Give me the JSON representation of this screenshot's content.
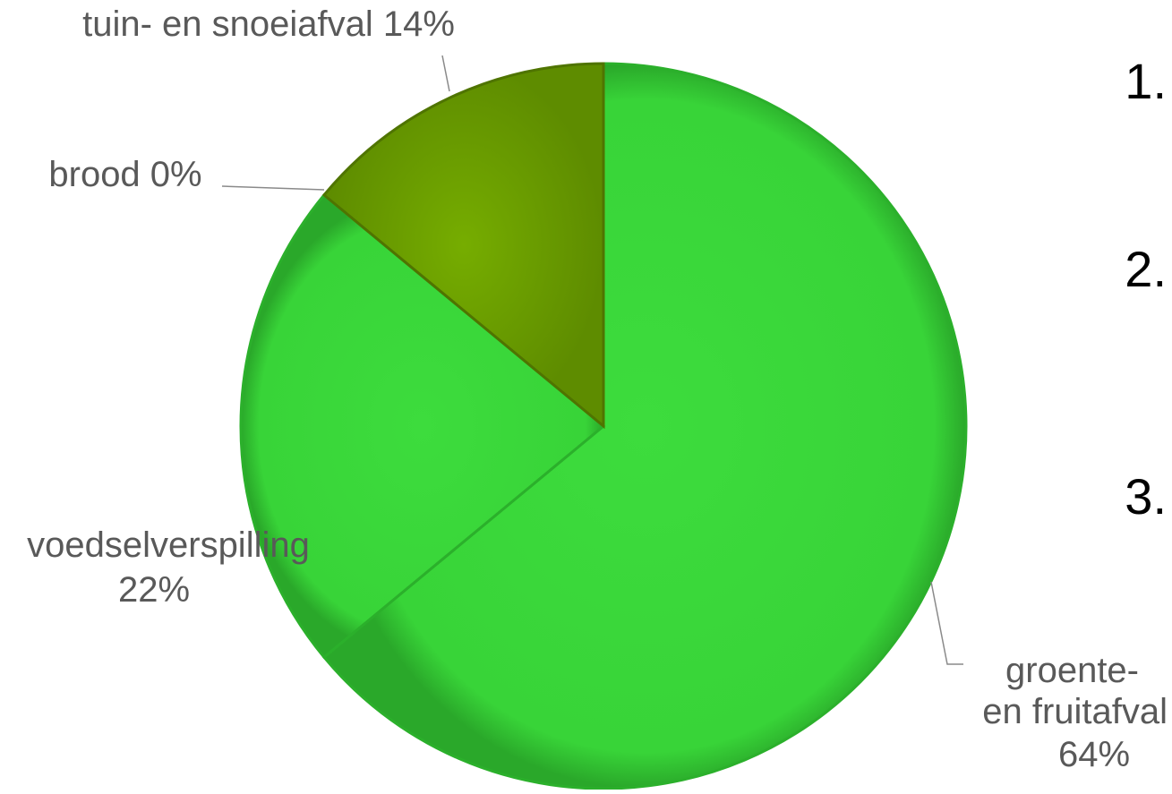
{
  "chart_data": {
    "type": "pie",
    "series": [
      {
        "values": [
          64,
          22,
          0,
          14
        ]
      }
    ],
    "slices": [
      {
        "label": "groente-\nen fruitafval",
        "pct_label": "64%",
        "value": 64,
        "color": "#3ad83a"
      },
      {
        "label": "voedselverspilling",
        "pct_label": "22%",
        "value": 22,
        "color": "#3ad83a"
      },
      {
        "label": "brood",
        "pct_label": "0%",
        "value": 0,
        "color": "#7fb800"
      },
      {
        "label": "tuin- en snoeiafval",
        "pct_label": "14%",
        "value": 14,
        "color": "#72a800"
      }
    ],
    "start_angle_deg": 0,
    "direction": "clockwise"
  },
  "numbered_items": [
    "1.",
    "2.",
    "3."
  ]
}
